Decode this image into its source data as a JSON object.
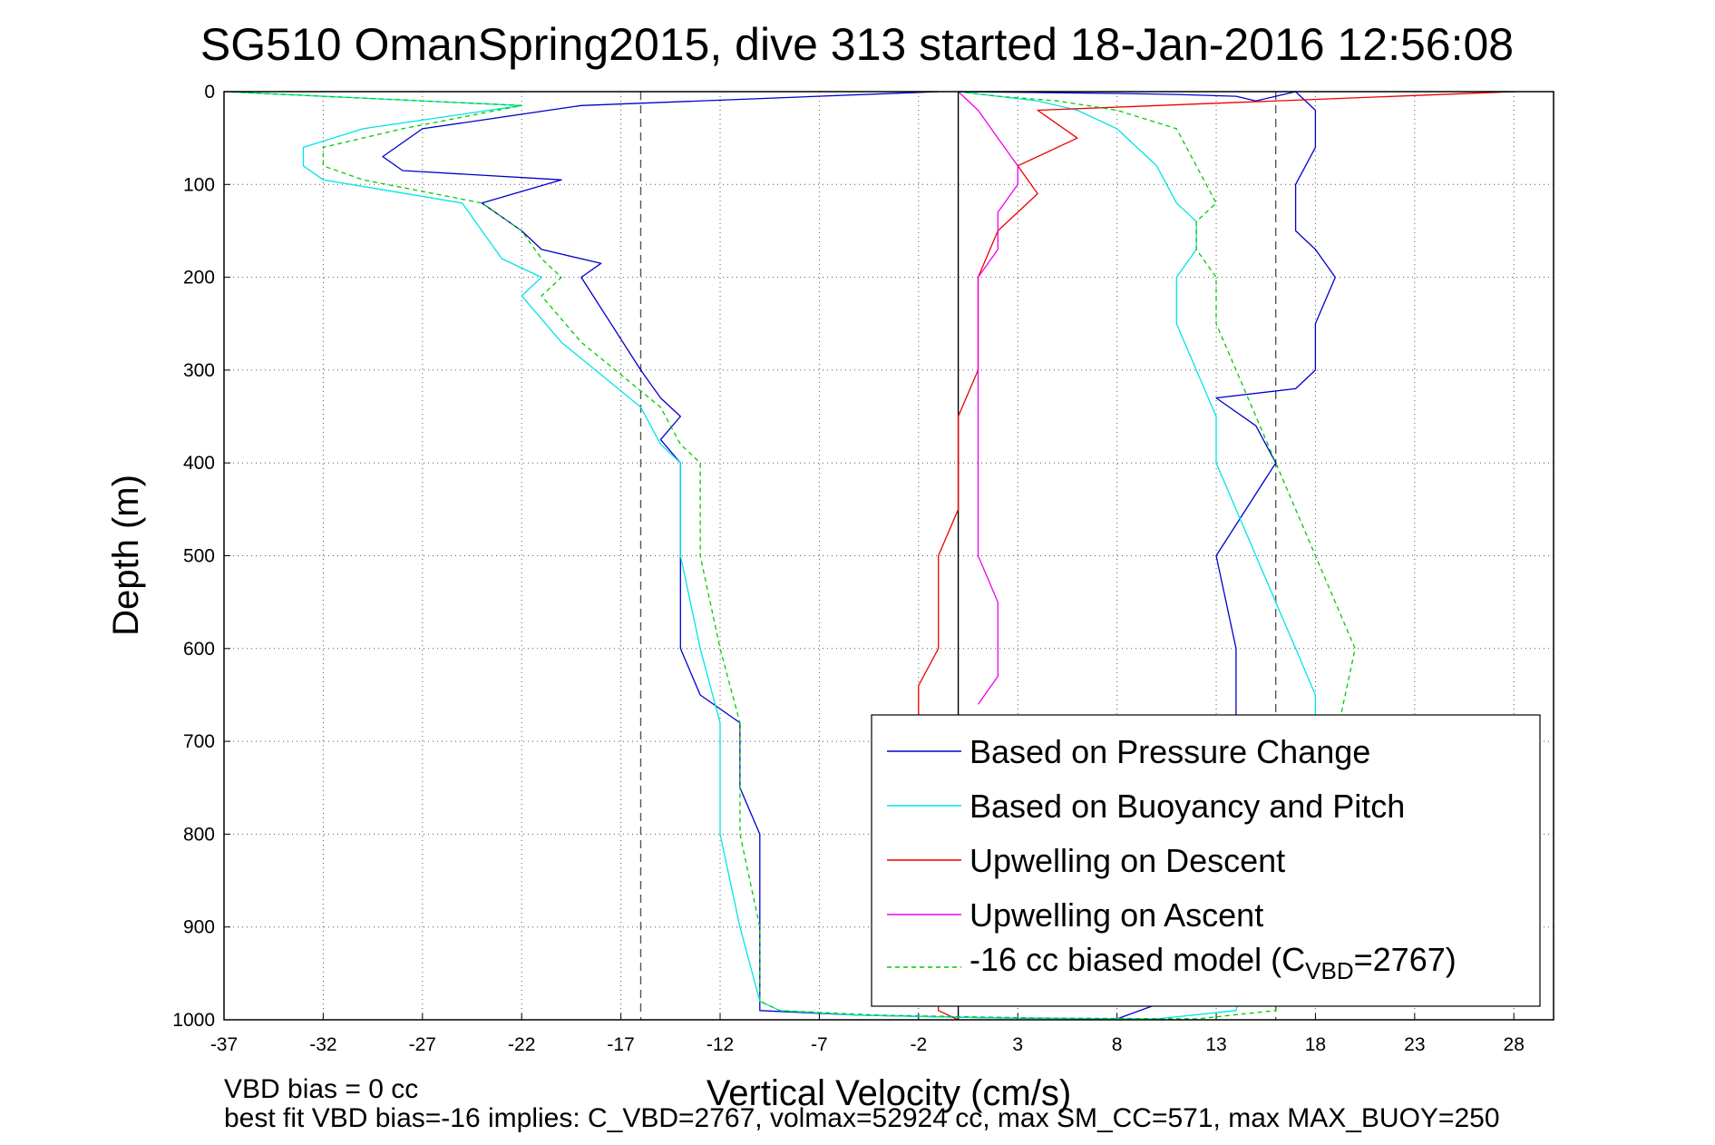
{
  "chart_data": {
    "type": "line",
    "title": "SG510 OmanSpring2015, dive 313 started 18-Jan-2016 12:56:08",
    "xlabel": "Vertical Velocity (cm/s)",
    "ylabel": "Depth (m)",
    "xlim": [
      -37,
      30
    ],
    "ylim": [
      0,
      1000
    ],
    "y_reversed": true,
    "grid": true,
    "xticks": [
      -37,
      -32,
      -27,
      -22,
      -17,
      -12,
      -7,
      -2,
      3,
      8,
      13,
      18,
      23,
      28
    ],
    "yticks": [
      0,
      100,
      200,
      300,
      400,
      500,
      600,
      700,
      800,
      900,
      1000
    ],
    "reference_lines": [
      {
        "type": "vertical",
        "x": -16,
        "style": "dashed",
        "color": "#555555"
      },
      {
        "type": "vertical",
        "x": 16,
        "style": "dashed",
        "color": "#555555"
      },
      {
        "type": "vertical",
        "x": 0,
        "style": "solid",
        "color": "#000000"
      }
    ],
    "legend_position": "bottom-right",
    "series": [
      {
        "name": "Based on Pressure Change",
        "color": "#0000cc",
        "style": "solid",
        "x": [
          -1,
          -19,
          -27,
          -29,
          -28,
          -20,
          -24,
          -22,
          -21,
          -18,
          -19,
          -16,
          -15,
          -14,
          -15,
          -14,
          -14,
          -14,
          -13,
          -11,
          -11,
          -10,
          -10,
          -10,
          -10,
          -5,
          2,
          8,
          13,
          14,
          14,
          13,
          16,
          15,
          13,
          17,
          18,
          18,
          19,
          18,
          17,
          17,
          17,
          18,
          18,
          17,
          16,
          15,
          14,
          11,
          8,
          4,
          0
        ],
        "y": [
          0,
          15,
          40,
          70,
          85,
          95,
          120,
          150,
          170,
          185,
          200,
          300,
          330,
          350,
          375,
          400,
          500,
          600,
          650,
          680,
          750,
          800,
          900,
          950,
          990,
          995,
          998,
          999,
          960,
          700,
          600,
          500,
          400,
          360,
          330,
          320,
          300,
          250,
          200,
          170,
          150,
          120,
          100,
          60,
          20,
          0,
          5,
          10,
          5,
          3,
          2,
          1,
          0
        ]
      },
      {
        "name": "Based on Buoyancy and Pitch",
        "color": "#00e5e5",
        "style": "solid",
        "x": [
          -37,
          -22,
          -30,
          -33,
          -33,
          -32,
          -25,
          -24,
          -23,
          -21,
          -22,
          -20,
          -16,
          -15,
          -14,
          -14,
          -13,
          -12,
          -12,
          -11,
          -10,
          -9,
          -5,
          2,
          10,
          14,
          16,
          18,
          18,
          17,
          16,
          15,
          14,
          13,
          13,
          12,
          11,
          11,
          12,
          12,
          11,
          10,
          8,
          6,
          4,
          2,
          0
        ],
        "y": [
          0,
          15,
          40,
          60,
          80,
          95,
          120,
          150,
          180,
          200,
          220,
          270,
          340,
          380,
          400,
          500,
          600,
          680,
          800,
          900,
          980,
          990,
          995,
          998,
          999,
          990,
          800,
          700,
          650,
          600,
          550,
          500,
          450,
          400,
          350,
          300,
          250,
          200,
          170,
          140,
          120,
          80,
          40,
          20,
          10,
          5,
          0
        ]
      },
      {
        "name": "Upwelling on Descent",
        "color": "#ee0000",
        "style": "solid",
        "x": [
          28,
          4,
          6,
          3,
          4,
          2,
          1,
          1,
          0,
          0,
          0,
          -1,
          -1,
          -1,
          -2,
          -2,
          -2,
          -1,
          -1,
          -1,
          -1,
          0
        ],
        "y": [
          0,
          20,
          50,
          80,
          110,
          150,
          200,
          300,
          350,
          400,
          450,
          500,
          550,
          600,
          640,
          680,
          720,
          800,
          900,
          950,
          990,
          1000
        ]
      },
      {
        "name": "Upwelling on Ascent",
        "color": "#ee00ee",
        "style": "solid",
        "x": [
          0,
          1,
          2,
          3,
          3,
          2,
          2,
          1,
          1,
          1,
          1,
          1,
          1,
          1,
          2,
          2,
          2,
          1
        ],
        "y": [
          0,
          20,
          50,
          80,
          100,
          130,
          170,
          200,
          250,
          300,
          350,
          400,
          450,
          500,
          550,
          600,
          630,
          660
        ]
      },
      {
        "name": "-16 cc biased model (C",
        "color": "#00cc00",
        "style": "dashed",
        "x": [
          -37,
          -22,
          -28,
          -32,
          -32,
          -30,
          -24,
          -22,
          -21,
          -20,
          -21,
          -19,
          -15,
          -14,
          -13,
          -13,
          -12,
          -11,
          -11,
          -10,
          -10,
          -9,
          -4,
          4,
          12,
          16,
          17,
          19,
          20,
          19,
          18,
          17,
          16,
          15,
          14,
          13,
          13,
          12,
          12,
          13,
          12,
          11,
          8,
          5,
          2,
          0
        ],
        "y": [
          0,
          15,
          40,
          60,
          80,
          95,
          120,
          150,
          180,
          200,
          220,
          270,
          340,
          380,
          400,
          500,
          600,
          680,
          800,
          900,
          980,
          990,
          995,
          998,
          999,
          990,
          800,
          700,
          600,
          550,
          500,
          450,
          400,
          350,
          300,
          250,
          200,
          170,
          140,
          120,
          80,
          40,
          20,
          10,
          5,
          0
        ]
      }
    ],
    "legend_model_subscript": "VBD",
    "legend_model_suffix": "=2767)"
  },
  "footer": {
    "line1": "VBD bias = 0 cc",
    "line2": "best fit VBD bias=-16 implies: C_VBD=2767, volmax=52924 cc, max SM_CC=571, max MAX_BUOY=250"
  }
}
